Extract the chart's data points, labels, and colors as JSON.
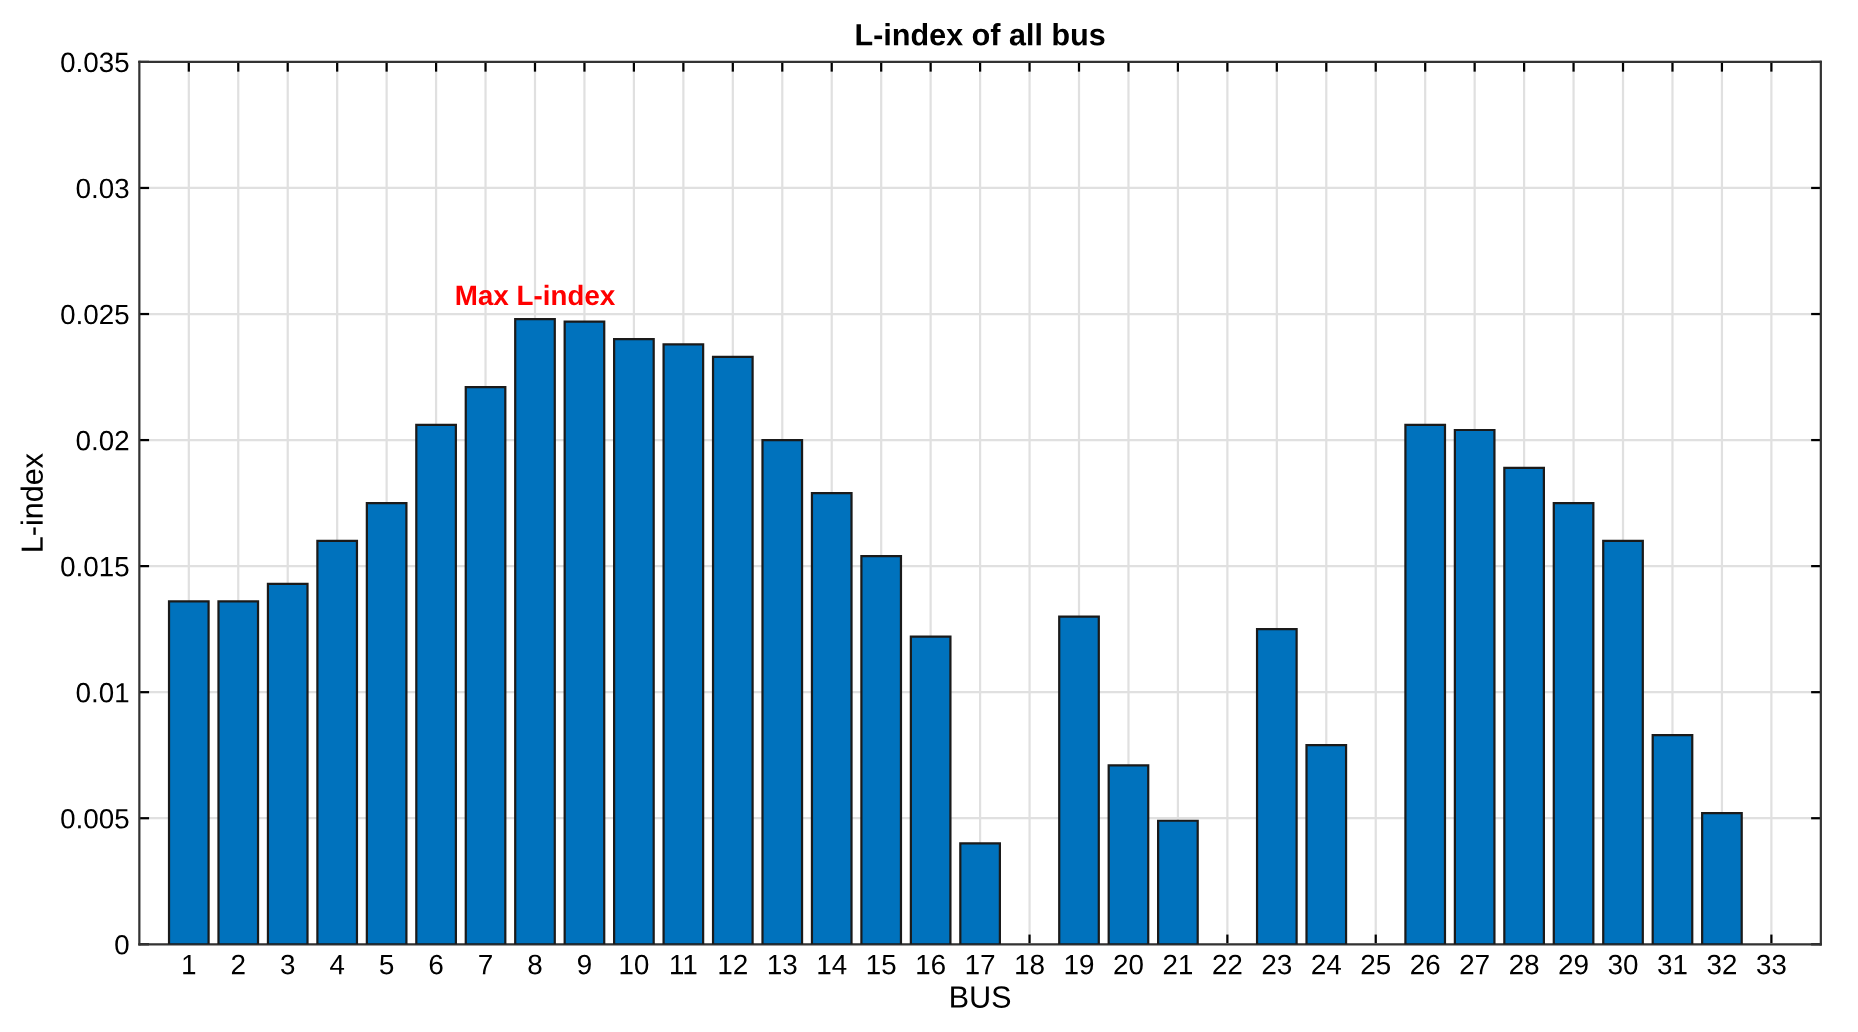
{
  "chart_data": {
    "type": "bar",
    "title": "L-index of all bus",
    "xlabel": "BUS",
    "ylabel": "L-index",
    "categories": [
      "1",
      "2",
      "3",
      "4",
      "5",
      "6",
      "7",
      "8",
      "9",
      "10",
      "11",
      "12",
      "13",
      "14",
      "15",
      "16",
      "17",
      "18",
      "19",
      "20",
      "21",
      "22",
      "23",
      "24",
      "25",
      "26",
      "27",
      "28",
      "29",
      "30",
      "31",
      "32",
      "33"
    ],
    "values": [
      0.0136,
      0.0136,
      0.0143,
      0.016,
      0.0175,
      0.0206,
      0.0221,
      0.0248,
      0.0247,
      0.024,
      0.0238,
      0.0233,
      0.02,
      0.0179,
      0.0154,
      0.0122,
      0.004,
      null,
      0.013,
      0.0071,
      0.0049,
      null,
      0.0125,
      0.0079,
      null,
      0.0206,
      0.0204,
      0.0189,
      0.0175,
      0.016,
      0.0083,
      0.0052,
      null
    ],
    "color": "#0072bd",
    "ylim": [
      0,
      0.035
    ],
    "yticks": [
      0,
      0.005,
      0.01,
      0.015,
      0.02,
      0.025,
      0.03,
      0.035
    ],
    "grid": true,
    "annotations": [
      {
        "text": "Max L-index",
        "x": "8",
        "y": 0.0248
      }
    ]
  }
}
